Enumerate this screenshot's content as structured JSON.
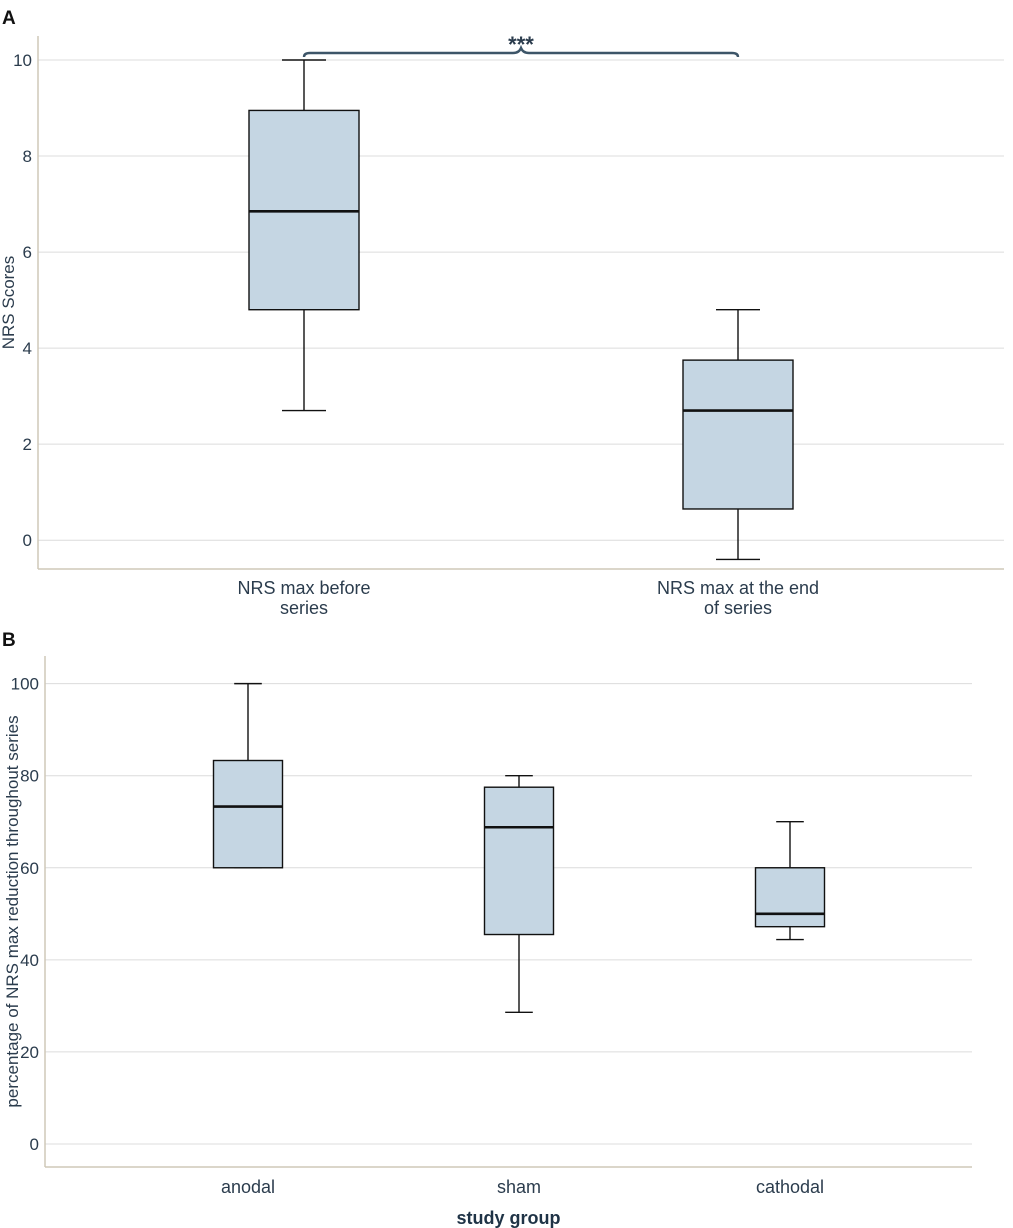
{
  "colors": {
    "box_fill": "#c5d6e3",
    "box_stroke": "#111111",
    "grid": "#dcdcdc",
    "axis": "#cfc8b8",
    "bracket": "#3d5568"
  },
  "chart_data": [
    {
      "panel": "A",
      "type": "box",
      "title": "",
      "xlabel": "",
      "ylabel": "NRS Scores",
      "ylim": [
        -0.6,
        10.5
      ],
      "yticks": [
        0,
        2,
        4,
        6,
        8,
        10
      ],
      "grid": true,
      "categories": [
        "NRS max before series",
        "NRS max at the end of series"
      ],
      "category_lines": [
        [
          "NRS max before",
          "series"
        ],
        [
          "NRS max at the end",
          "of series"
        ]
      ],
      "boxes": [
        {
          "whisker_low": 2.7,
          "q1": 4.8,
          "median": 6.85,
          "q3": 8.95,
          "whisker_high": 10.0
        },
        {
          "whisker_low": -0.4,
          "q1": 0.65,
          "median": 2.7,
          "q3": 3.75,
          "whisker_high": 4.8
        }
      ],
      "significance": {
        "between": [
          0,
          1
        ],
        "label": "***"
      }
    },
    {
      "panel": "B",
      "type": "box",
      "title": "",
      "xlabel": "study group",
      "ylabel": "percentage of NRS max reduction throughout series",
      "ylim": [
        -5,
        106
      ],
      "yticks": [
        0,
        20,
        40,
        60,
        80,
        100
      ],
      "grid": true,
      "categories": [
        "anodal",
        "sham",
        "cathodal"
      ],
      "category_lines": [
        [
          "anodal"
        ],
        [
          "sham"
        ],
        [
          "cathodal"
        ]
      ],
      "boxes": [
        {
          "whisker_low": 60,
          "q1": 60,
          "median": 73.3,
          "q3": 83.3,
          "whisker_high": 100
        },
        {
          "whisker_low": 28.6,
          "q1": 45.5,
          "median": 68.8,
          "q3": 77.5,
          "whisker_high": 80
        },
        {
          "whisker_low": 44.4,
          "q1": 47.2,
          "median": 50,
          "q3": 60,
          "whisker_high": 70
        }
      ]
    }
  ]
}
